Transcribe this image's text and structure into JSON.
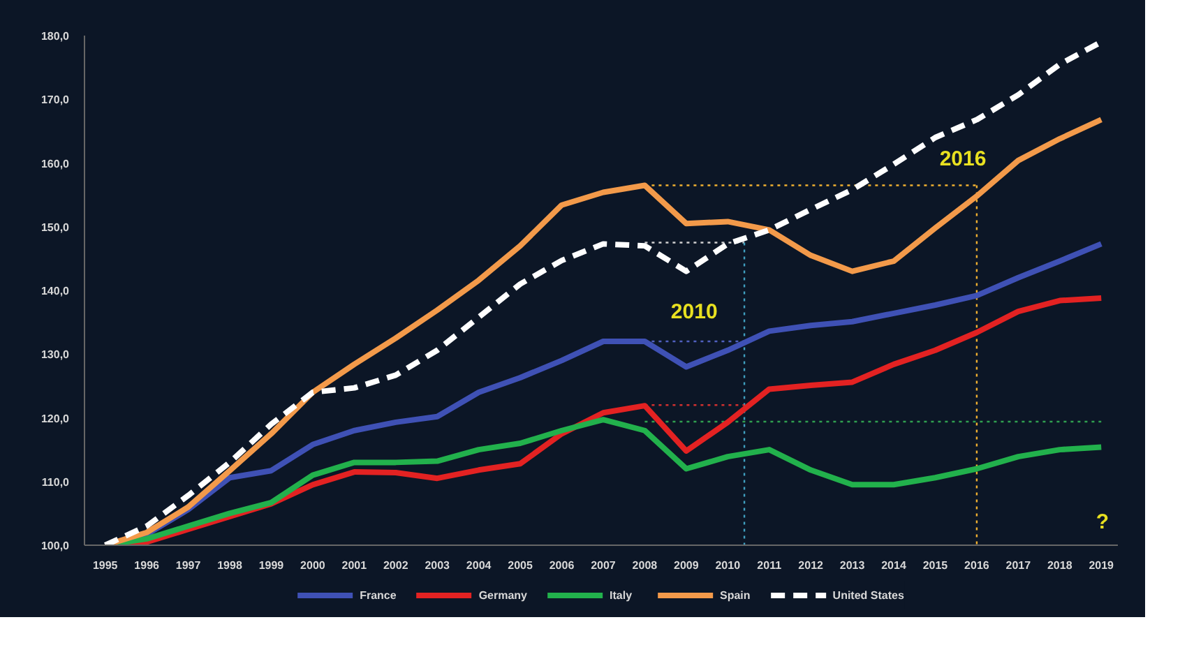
{
  "chart_data": {
    "type": "line",
    "line_style": "solid",
    "marker": "none",
    "legend": "bottom",
    "x": [
      1995,
      1996,
      1997,
      1998,
      1999,
      2000,
      2001,
      2002,
      2003,
      2004,
      2005,
      2006,
      2007,
      2008,
      2009,
      2010,
      2011,
      2012,
      2013,
      2014,
      2015,
      2016,
      2017,
      2018,
      2019
    ],
    "xlim": [
      1994.5,
      2019.4
    ],
    "xticks": [
      1995,
      1996,
      1997,
      1998,
      1999,
      2000,
      2001,
      2002,
      2003,
      2004,
      2005,
      2006,
      2007,
      2008,
      2009,
      2010,
      2011,
      2012,
      2013,
      2014,
      2015,
      2016,
      2017,
      2018,
      2019
    ],
    "ylim": [
      100,
      180
    ],
    "yticks": [
      {
        "value": 100,
        "label": "100,0"
      },
      {
        "value": 110,
        "label": "110,0"
      },
      {
        "value": 120,
        "label": "120,0"
      },
      {
        "value": 130,
        "label": "130,0"
      },
      {
        "value": 140,
        "label": "140,0"
      },
      {
        "value": 150,
        "label": "150,0"
      },
      {
        "value": 160,
        "label": "160,0"
      },
      {
        "value": 170,
        "label": "170,0"
      },
      {
        "value": 180,
        "label": "180,0"
      }
    ],
    "series": [
      {
        "type": "line",
        "line_style": "dotted",
        "color": "#f0b030",
        "x": [
          2008,
          2016
        ],
        "values": [
          156.5,
          156.5
        ]
      },
      {
        "type": "line",
        "line_style": "dotted",
        "color": "#f0b030",
        "x": [
          2016,
          2016
        ],
        "values": [
          156.5,
          100
        ]
      },
      {
        "type": "line",
        "line_style": "dotted",
        "color": "#d0d0d0",
        "x": [
          2008,
          2010.4
        ],
        "values": [
          147.5,
          147.5
        ]
      },
      {
        "type": "line",
        "line_style": "dotted",
        "color": "#40a0c0",
        "x": [
          2010.4,
          2010.4
        ],
        "values": [
          147.5,
          100
        ]
      },
      {
        "type": "line",
        "line_style": "dotted",
        "color": "#5060c0",
        "x": [
          2008,
          2010.4
        ],
        "values": [
          132,
          132
        ]
      },
      {
        "type": "line",
        "line_style": "dotted",
        "color": "#d03030",
        "x": [
          2008,
          2010.4
        ],
        "values": [
          122,
          122
        ]
      },
      {
        "type": "line",
        "line_style": "dotted",
        "color": "#30a050",
        "x": [
          2008,
          2019
        ],
        "values": [
          119.4,
          119.4
        ]
      },
      {
        "name": "France",
        "color": "#3f51b5",
        "values": [
          100,
          101.7,
          105.6,
          110.6,
          111.7,
          115.8,
          118,
          119.3,
          120.2,
          124,
          126.3,
          129,
          132,
          132,
          128,
          130.6,
          133.6,
          134.5,
          135.1,
          136.4,
          137.7,
          139.2,
          142,
          144.6,
          147.3
        ]
      },
      {
        "name": "Germany",
        "color": "#e32222",
        "values": [
          100,
          100.5,
          102.5,
          104.5,
          106.5,
          109.5,
          111.5,
          111.4,
          110.5,
          111.8,
          112.8,
          117.5,
          120.8,
          121.9,
          114.8,
          119.3,
          124.5,
          125.1,
          125.6,
          128.4,
          130.6,
          133.4,
          136.7,
          138.4,
          138.8
        ]
      },
      {
        "name": "Italy",
        "color": "#22b14c",
        "values": [
          100,
          101,
          103,
          105,
          106.7,
          111,
          113,
          113,
          113.2,
          115,
          116,
          118,
          119.7,
          118,
          112,
          113.9,
          115,
          111.8,
          109.5,
          109.5,
          110.6,
          112,
          113.9,
          115,
          115.4
        ]
      },
      {
        "name": "Spain",
        "color": "#f39a4a",
        "values": [
          100,
          102,
          106,
          111.7,
          117.5,
          124,
          128.4,
          132.5,
          136.9,
          141.6,
          147,
          153.4,
          155.4,
          156.5,
          150.5,
          150.8,
          149.5,
          145.5,
          143,
          144.6,
          149.8,
          154.8,
          160.4,
          163.8,
          166.8
        ]
      },
      {
        "name": "United States",
        "color": "#ffffff",
        "line_style": "dashed",
        "values": [
          100,
          103,
          107.8,
          113,
          119,
          124,
          124.7,
          126.7,
          130.6,
          135.8,
          141,
          144.7,
          147.3,
          147,
          143,
          147.3,
          149.5,
          152.7,
          155.8,
          159.8,
          164,
          166.8,
          170.7,
          175.5,
          179
        ]
      }
    ],
    "annotations": [
      "2016",
      "2010",
      "?"
    ]
  }
}
